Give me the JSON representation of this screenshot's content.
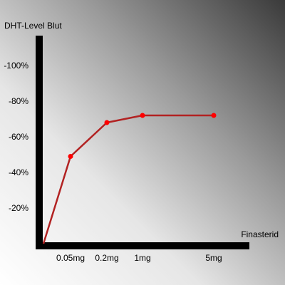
{
  "chart_data": {
    "type": "line",
    "title": "",
    "ylabel": "DHT-Level Blut",
    "xlabel": "Finasterid",
    "categories": [
      "0.05mg",
      "0.2mg",
      "1mg",
      "5mg"
    ],
    "y_ticks": [
      "-100%",
      "-80%",
      "-60%",
      "-40%",
      "-20%"
    ],
    "y_tick_values": [
      100,
      80,
      60,
      40,
      20
    ],
    "ylim": [
      0,
      110
    ],
    "origin_point": {
      "x": "0",
      "y": 0
    },
    "series": [
      {
        "values": [
          49,
          68,
          72,
          72
        ],
        "color": "#b22222",
        "marker_color": "#ff0000"
      }
    ],
    "grid": false,
    "background": "gradient-white-to-dark-gray"
  }
}
